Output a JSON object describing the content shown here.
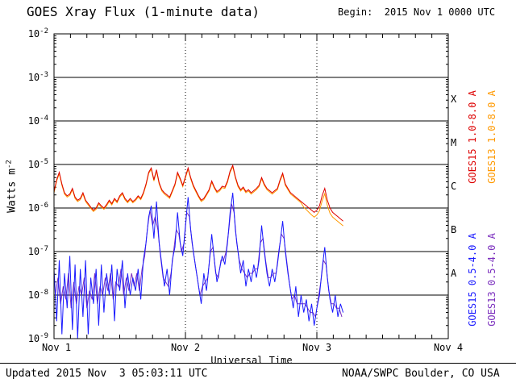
{
  "title": "GOES Xray Flux (1-minute data)",
  "begin_label": "Begin:  2015 Nov 1 0000 UTC",
  "footer": {
    "updated": "Updated 2015 Nov  3 05:03:11 UTC",
    "source": "NOAA/SWPC Boulder, CO USA"
  },
  "axes": {
    "xlabel": "Universal Time",
    "ylabel_base": "Watts m",
    "ylabel_exp": "-2",
    "y_ticks": [
      {
        "base": "10",
        "exp": "-2"
      },
      {
        "base": "10",
        "exp": "-3"
      },
      {
        "base": "10",
        "exp": "-4"
      },
      {
        "base": "10",
        "exp": "-5"
      },
      {
        "base": "10",
        "exp": "-6"
      },
      {
        "base": "10",
        "exp": "-7"
      },
      {
        "base": "10",
        "exp": "-8"
      },
      {
        "base": "10",
        "exp": "-9"
      }
    ],
    "x_tick_labels": [
      "Nov 1",
      "Nov 2",
      "Nov 3",
      "Nov 4"
    ],
    "class_letters": [
      "X",
      "M",
      "C",
      "B",
      "A"
    ]
  },
  "legend": [
    {
      "label": "GOES15 1.0-8.0 A",
      "color": "#dd0000"
    },
    {
      "label": "GOES13 1.0-8.0 A",
      "color": "#ff9900"
    },
    {
      "label": "GOES15 0.5-4.0 A",
      "color": "#1a1aff"
    },
    {
      "label": "GOES13 0.5-4.0 A",
      "color": "#7b2fbe"
    }
  ],
  "chart_data": {
    "type": "line",
    "title": "GOES Xray Flux (1-minute data)",
    "xlabel": "Universal Time",
    "ylabel": "Watts m^-2",
    "y_scale": "log",
    "ylim": [
      1e-09,
      0.01
    ],
    "xlim_days": [
      0,
      3
    ],
    "x_unit": "days since 2015 Nov 1 0000 UTC",
    "begin": "2015 Nov 1 0000 UTC",
    "updated": "2015 Nov 3 05:03:11 UTC",
    "y_decade_lines_log10": [
      -3,
      -4,
      -5,
      -6,
      -7,
      -8
    ],
    "x_gridlines_days": [
      1,
      2
    ],
    "x_major_tick_days": [
      1,
      2
    ],
    "x_minor_tick_days": 0.125,
    "flux_class_bands": {
      "A": [
        1e-08,
        1e-07
      ],
      "B": [
        1e-07,
        1e-06
      ],
      "C": [
        1e-06,
        1e-05
      ],
      "M": [
        1e-05,
        0.0001
      ],
      "X": [
        0.0001,
        0.001
      ]
    },
    "series": [
      {
        "name": "GOES15 1.0-8.0 A",
        "color": "#dd0000",
        "x_start_days": 0.0,
        "x_step_days": 0.02,
        "log10_flux": [
          -5.62,
          -5.35,
          -5.18,
          -5.45,
          -5.65,
          -5.72,
          -5.68,
          -5.55,
          -5.75,
          -5.82,
          -5.78,
          -5.65,
          -5.82,
          -5.9,
          -5.98,
          -6.05,
          -6.0,
          -5.88,
          -5.95,
          -6.0,
          -5.92,
          -5.82,
          -5.9,
          -5.78,
          -5.85,
          -5.72,
          -5.65,
          -5.78,
          -5.85,
          -5.78,
          -5.85,
          -5.8,
          -5.72,
          -5.78,
          -5.65,
          -5.45,
          -5.18,
          -5.08,
          -5.35,
          -5.12,
          -5.42,
          -5.58,
          -5.65,
          -5.7,
          -5.75,
          -5.6,
          -5.45,
          -5.18,
          -5.32,
          -5.48,
          -5.28,
          -5.08,
          -5.3,
          -5.48,
          -5.6,
          -5.72,
          -5.82,
          -5.78,
          -5.68,
          -5.58,
          -5.38,
          -5.52,
          -5.62,
          -5.58,
          -5.5,
          -5.52,
          -5.38,
          -5.15,
          -5.02,
          -5.28,
          -5.48,
          -5.58,
          -5.52,
          -5.62,
          -5.58,
          -5.65,
          -5.6,
          -5.55,
          -5.48,
          -5.3,
          -5.45,
          -5.55,
          -5.6,
          -5.65,
          -5.6,
          -5.55,
          -5.35,
          -5.2,
          -5.45,
          -5.55,
          -5.65,
          -5.7,
          -5.75,
          -5.8,
          -5.85,
          -5.9,
          -5.95,
          -6.0,
          -6.05,
          -6.1,
          -6.05,
          -5.95,
          -5.72,
          -5.55,
          -5.82,
          -6.0,
          -6.1,
          -6.15,
          -6.2,
          -6.25,
          -6.3
        ]
      },
      {
        "name": "GOES13 1.0-8.0 A",
        "color": "#ff9900",
        "x_start_days": 0.0,
        "x_step_days": 0.02,
        "log10_flux": [
          -5.65,
          -5.38,
          -5.21,
          -5.48,
          -5.68,
          -5.75,
          -5.71,
          -5.58,
          -5.78,
          -5.85,
          -5.81,
          -5.68,
          -5.85,
          -5.93,
          -6.01,
          -6.08,
          -6.03,
          -5.91,
          -5.98,
          -6.03,
          -5.95,
          -5.85,
          -5.93,
          -5.81,
          -5.88,
          -5.75,
          -5.68,
          -5.81,
          -5.88,
          -5.81,
          -5.88,
          -5.83,
          -5.75,
          -5.81,
          -5.68,
          -5.48,
          -5.21,
          -5.11,
          -5.38,
          -5.15,
          -5.45,
          -5.61,
          -5.68,
          -5.73,
          -5.78,
          -5.63,
          -5.48,
          -5.21,
          -5.35,
          -5.51,
          -5.31,
          -5.11,
          -5.33,
          -5.51,
          -5.63,
          -5.75,
          -5.85,
          -5.81,
          -5.71,
          -5.61,
          -5.41,
          -5.55,
          -5.65,
          -5.61,
          -5.53,
          -5.55,
          -5.41,
          -5.18,
          -5.05,
          -5.31,
          -5.51,
          -5.61,
          -5.55,
          -5.65,
          -5.61,
          -5.68,
          -5.63,
          -5.58,
          -5.51,
          -5.33,
          -5.48,
          -5.58,
          -5.63,
          -5.68,
          -5.63,
          -5.58,
          -5.38,
          -5.23,
          -5.48,
          -5.58,
          -5.68,
          -5.73,
          -5.78,
          -5.83,
          -5.88,
          -5.98,
          -6.04,
          -6.1,
          -6.16,
          -6.21,
          -6.16,
          -6.06,
          -5.84,
          -5.67,
          -5.94,
          -6.12,
          -6.21,
          -6.26,
          -6.31,
          -6.36,
          -6.41
        ]
      },
      {
        "name": "GOES15 0.5-4.0 A",
        "color": "#1a1aff",
        "x_start_days": 0.0,
        "x_step_days": 0.02,
        "log10_flux": [
          -7.4,
          -8.6,
          -7.2,
          -8.9,
          -7.5,
          -8.3,
          -7.1,
          -8.8,
          -7.3,
          -9.0,
          -7.4,
          -8.5,
          -7.2,
          -8.9,
          -7.6,
          -8.2,
          -7.4,
          -8.7,
          -7.3,
          -8.4,
          -7.5,
          -8.0,
          -7.3,
          -8.6,
          -7.4,
          -7.9,
          -7.2,
          -8.3,
          -7.5,
          -8.0,
          -7.6,
          -7.9,
          -7.4,
          -8.1,
          -7.2,
          -6.8,
          -6.2,
          -5.95,
          -6.7,
          -5.85,
          -6.8,
          -7.3,
          -7.8,
          -7.4,
          -8.0,
          -7.2,
          -6.9,
          -6.1,
          -6.8,
          -7.1,
          -6.4,
          -5.75,
          -6.5,
          -7.0,
          -7.4,
          -7.8,
          -8.2,
          -7.5,
          -7.9,
          -7.3,
          -6.6,
          -7.2,
          -7.7,
          -7.4,
          -7.1,
          -7.3,
          -6.8,
          -6.1,
          -5.65,
          -6.5,
          -7.0,
          -7.5,
          -7.2,
          -7.8,
          -7.4,
          -7.7,
          -7.3,
          -7.6,
          -7.2,
          -6.4,
          -7.0,
          -7.5,
          -7.8,
          -7.4,
          -7.7,
          -7.3,
          -6.8,
          -6.3,
          -7.0,
          -7.5,
          -7.9,
          -8.3,
          -7.8,
          -8.5,
          -8.0,
          -8.4,
          -8.1,
          -8.6,
          -8.2,
          -8.7,
          -8.3,
          -8.0,
          -7.4,
          -6.9,
          -7.6,
          -8.1,
          -8.4,
          -8.0,
          -8.5,
          -8.2,
          -8.4
        ]
      },
      {
        "name": "GOES13 0.5-4.0 A",
        "color": "#7b2fbe",
        "x_start_days": 0.01,
        "x_step_days": 0.02,
        "log10_flux": [
          -8.0,
          -7.6,
          -8.2,
          -7.8,
          -8.1,
          -7.5,
          -8.3,
          -7.7,
          -8.2,
          -7.8,
          -8.0,
          -7.6,
          -8.3,
          -7.9,
          -8.1,
          -7.5,
          -8.2,
          -7.8,
          -8.0,
          -7.6,
          -7.9,
          -7.5,
          -8.1,
          -7.7,
          -7.8,
          -7.4,
          -8.0,
          -7.6,
          -7.9,
          -7.5,
          -7.8,
          -7.5,
          -7.9,
          -7.4,
          -7.1,
          -6.5,
          -6.05,
          -6.4,
          -6.2,
          -6.5,
          -7.1,
          -7.6,
          -7.7,
          -7.8,
          -7.5,
          -7.0,
          -6.5,
          -6.6,
          -7.0,
          -6.8,
          -6.1,
          -6.2,
          -6.8,
          -7.2,
          -7.6,
          -8.0,
          -7.8,
          -7.7,
          -7.6,
          -7.0,
          -6.9,
          -7.5,
          -7.6,
          -7.2,
          -7.2,
          -7.0,
          -6.5,
          -5.9,
          -6.1,
          -6.8,
          -7.2,
          -7.4,
          -7.5,
          -7.6,
          -7.5,
          -7.5,
          -7.4,
          -7.4,
          -6.8,
          -6.7,
          -7.2,
          -7.6,
          -7.6,
          -7.5,
          -7.5,
          -7.0,
          -6.6,
          -6.7,
          -7.2,
          -7.7,
          -8.1,
          -8.0,
          -8.2,
          -8.2,
          -8.2,
          -8.2,
          -8.3,
          -8.4,
          -8.4,
          -8.5,
          -8.1,
          -7.7,
          -7.2,
          -7.3,
          -7.9,
          -8.2,
          -8.2,
          -8.3,
          -8.3,
          -8.5
        ]
      }
    ]
  }
}
